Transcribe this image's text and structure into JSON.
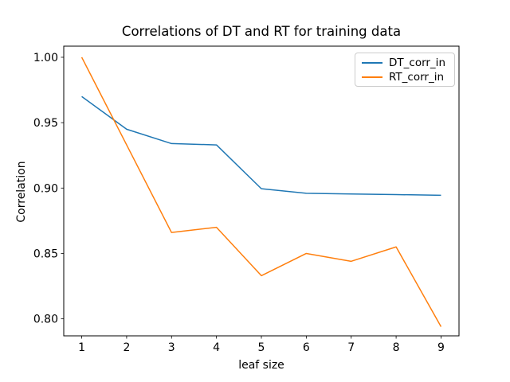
{
  "chart_data": {
    "type": "line",
    "title": "Correlations of DT and RT for training data",
    "xlabel": "leaf size",
    "ylabel": "Correlation",
    "x": [
      1,
      2,
      3,
      4,
      5,
      6,
      7,
      8,
      9
    ],
    "series": [
      {
        "name": "DT_corr_in",
        "color": "#1f77b4",
        "values": [
          0.97,
          0.945,
          0.934,
          0.933,
          0.8995,
          0.896,
          0.8955,
          0.895,
          0.8945
        ]
      },
      {
        "name": "RT_corr_in",
        "color": "#ff7f0e",
        "values": [
          1.0,
          0.933,
          0.866,
          0.87,
          0.833,
          0.85,
          0.844,
          0.855,
          0.794
        ]
      }
    ],
    "xlim": [
      0.6,
      9.4
    ],
    "ylim": [
      0.787,
      1.0085
    ],
    "xticks": [
      1,
      2,
      3,
      4,
      5,
      6,
      7,
      8,
      9
    ],
    "xtick_labels": [
      "1",
      "2",
      "3",
      "4",
      "5",
      "6",
      "7",
      "8",
      "9"
    ],
    "yticks": [
      0.8,
      0.85,
      0.9,
      0.95,
      1.0
    ],
    "ytick_labels": [
      "0.80",
      "0.85",
      "0.90",
      "0.95",
      "1.00"
    ],
    "grid": false,
    "legend_position": "upper right"
  }
}
